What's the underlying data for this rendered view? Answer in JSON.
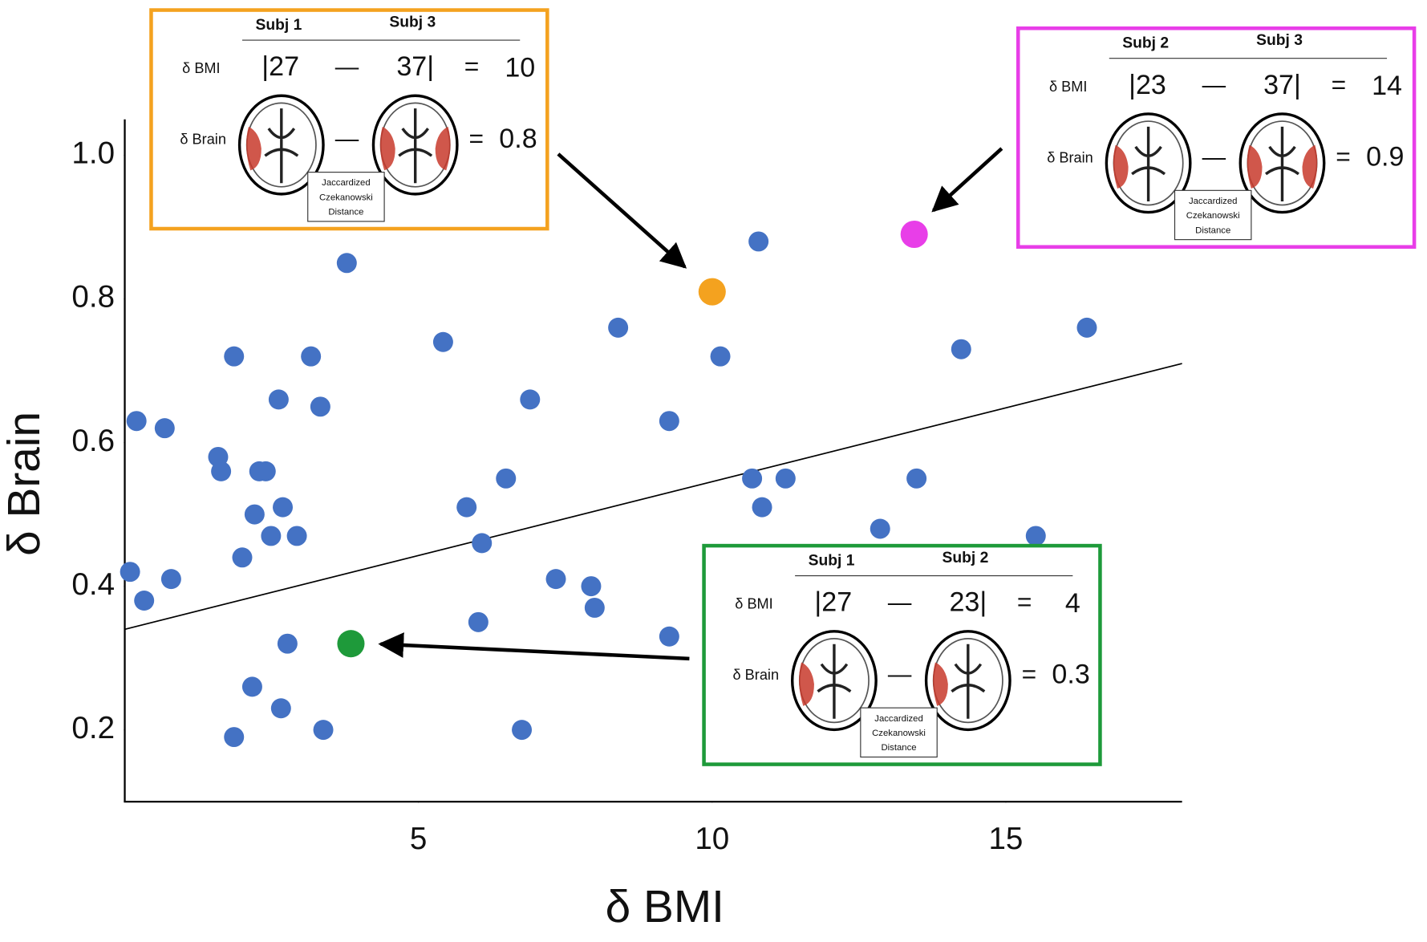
{
  "chart_data": {
    "type": "scatter",
    "x_label": "δ BMI",
    "y_label": "δ Brain",
    "xlim": [
      0,
      18
    ],
    "ylim": [
      0.1,
      1.05
    ],
    "xticks": [
      5,
      10,
      15
    ],
    "yticks": [
      {
        "value": 0.2,
        "label": "0.2"
      },
      {
        "value": 0.4,
        "label": "0.4"
      },
      {
        "value": 0.6,
        "label": "0.6"
      },
      {
        "value": 0.8,
        "label": "0.8"
      },
      {
        "value": 1.0,
        "label": "1.0"
      }
    ],
    "points": {
      "color": "#4472c4",
      "x": [
        0.09,
        0.2,
        0.33,
        0.68,
        0.79,
        1.59,
        1.64,
        1.86,
        1.86,
        2.0,
        2.17,
        2.21,
        2.29,
        2.4,
        2.49,
        2.62,
        2.69,
        2.66,
        2.77,
        2.93,
        3.17,
        3.33,
        3.38,
        3.78,
        5.42,
        5.82,
        6.02,
        6.08,
        6.49,
        6.76,
        6.9,
        7.34,
        7.94,
        8.0,
        8.4,
        9.27,
        9.27,
        10.14,
        10.68,
        10.79,
        10.85,
        11.25,
        12.86,
        13.48,
        14.24,
        15.51,
        16.38
      ],
      "y": [
        0.42,
        0.63,
        0.38,
        0.62,
        0.41,
        0.58,
        0.56,
        0.72,
        0.19,
        0.44,
        0.26,
        0.5,
        0.56,
        0.56,
        0.47,
        0.66,
        0.51,
        0.23,
        0.32,
        0.47,
        0.72,
        0.65,
        0.2,
        0.85,
        0.74,
        0.51,
        0.35,
        0.46,
        0.55,
        0.2,
        0.66,
        0.41,
        0.4,
        0.37,
        0.76,
        0.63,
        0.33,
        0.72,
        0.55,
        0.88,
        0.51,
        0.55,
        0.48,
        0.55,
        0.73,
        0.47,
        0.76
      ]
    },
    "fit_line": {
      "x": [
        0,
        18
      ],
      "y": [
        0.34,
        0.71
      ]
    },
    "annotations": [
      {
        "color": "#f4a21f",
        "x": 10,
        "y": 0.81,
        "headers": [
          "Subj 1",
          "Subj 3"
        ],
        "bmi_label": "δ BMI",
        "bmi_left": "|27",
        "minus": "—",
        "bmi_right": "37|",
        "equals": "=",
        "bmi_result": "10",
        "brain_label": "δ Brain",
        "brain_result": "0.8",
        "distance_label": [
          "Jaccardized",
          "Czekanowski",
          "Distance"
        ]
      },
      {
        "color": "#e83ee8",
        "x": 13.44,
        "y": 0.89,
        "headers": [
          "Subj 2",
          "Subj 3"
        ],
        "bmi_label": "δ BMI",
        "bmi_left": "|23",
        "minus": "—",
        "bmi_right": "37|",
        "equals": "=",
        "bmi_result": "14",
        "brain_label": "δ Brain",
        "brain_result": "0.9",
        "distance_label": [
          "Jaccardized",
          "Czekanowski",
          "Distance"
        ]
      },
      {
        "color": "#1e9a3a",
        "x": 3.85,
        "y": 0.32,
        "headers": [
          "Subj 1",
          "Subj 2"
        ],
        "bmi_label": "δ BMI",
        "bmi_left": "|27",
        "minus": "—",
        "bmi_right": "23|",
        "equals": "=",
        "bmi_result": "4",
        "brain_label": "δ Brain",
        "brain_result": "0.3",
        "distance_label": [
          "Jaccardized",
          "Czekanowski",
          "Distance"
        ]
      }
    ]
  }
}
